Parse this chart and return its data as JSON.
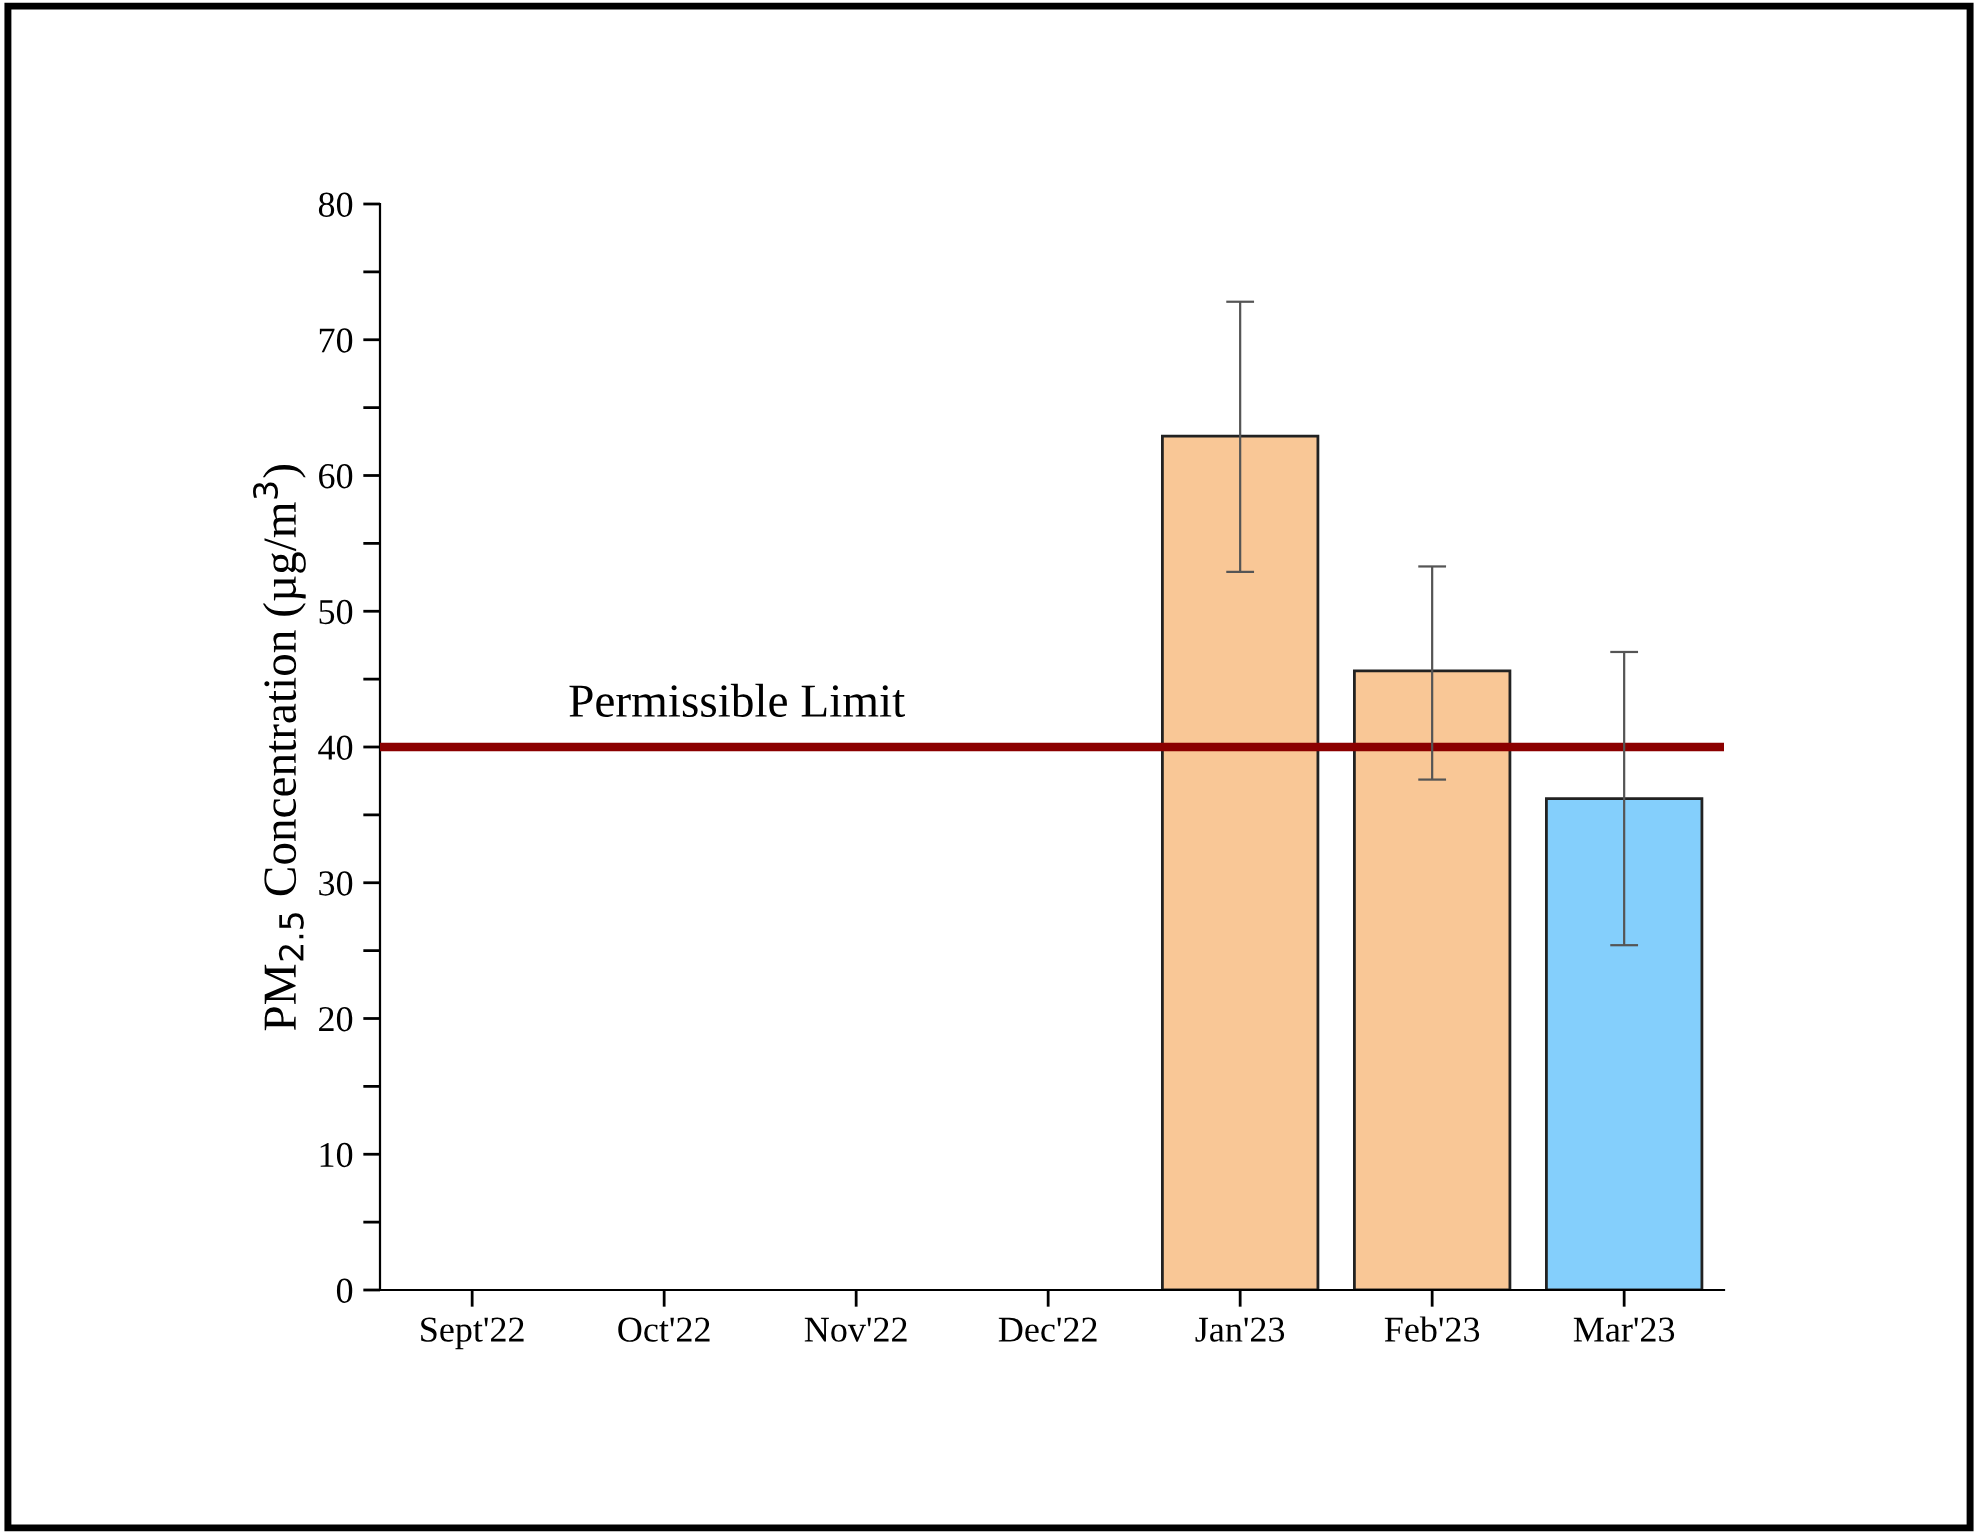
{
  "chart_data": {
    "type": "bar",
    "ylabel": "PM$_{2.5}$ Concentration (µg/m$^{3}$)",
    "categories": [
      "Sept'22",
      "Oct'22",
      "Nov'22",
      "Dec'22",
      "Jan'23",
      "Feb'23",
      "Mar'23"
    ],
    "values": [
      null,
      null,
      null,
      null,
      62.9,
      45.6,
      36.2
    ],
    "colors": [
      "#f9c796",
      "#f9c796",
      "#f9c796",
      "#f9c796",
      "#f9c796",
      "#f9c796",
      "#84cffc"
    ],
    "errors": [
      null,
      null,
      null,
      null,
      [
        52.9,
        72.8
      ],
      [
        37.6,
        53.3
      ],
      [
        25.4,
        47.0
      ]
    ],
    "ylim": [
      0,
      80
    ],
    "yticks": [
      0,
      {
        "value": 5,
        "label": null
      },
      10,
      {
        "value": 15,
        "label": null
      },
      20,
      {
        "value": 25,
        "label": null
      },
      30,
      {
        "value": 35,
        "label": null
      },
      40,
      {
        "value": 45,
        "label": null
      },
      50,
      {
        "value": 55,
        "label": null
      },
      60,
      {
        "value": 65,
        "label": null
      },
      70,
      {
        "value": 75,
        "label": null
      },
      80
    ],
    "ref_lines": [
      {
        "axis": "y",
        "value": 40,
        "label": "Permissible Limit",
        "color": "#8b0000"
      }
    ],
    "grid": false,
    "legend": false
  }
}
